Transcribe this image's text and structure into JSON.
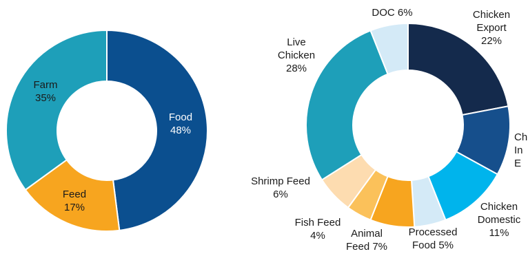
{
  "chart_data": [
    {
      "type": "pie",
      "slices": [
        {
          "lines": [
            "Food",
            "48%"
          ],
          "value": 48,
          "color": "#0b4f8f",
          "text_color": "#ffffff"
        },
        {
          "lines": [
            "Feed",
            "17%"
          ],
          "value": 17,
          "color": "#f7a51f",
          "text_color": "#1a1a1a"
        },
        {
          "lines": [
            "Farm",
            "35%"
          ],
          "value": 35,
          "color": "#1e9fb9",
          "text_color": "#1a1a1a"
        }
      ]
    },
    {
      "type": "pie",
      "slices": [
        {
          "lines": [
            "Chicken",
            "Export",
            "22%"
          ],
          "value": 22,
          "color": "#142a4c",
          "text_color": "#1a1a1a"
        },
        {
          "lines": [
            "Ch",
            "In",
            "E"
          ],
          "value": 11,
          "color": "#164f8c",
          "text_color": "#1a1a1a"
        },
        {
          "lines": [
            "Chicken",
            "Domestic",
            "11%"
          ],
          "value": 11,
          "color": "#00b4ec",
          "text_color": "#1a1a1a"
        },
        {
          "lines": [
            "Processed",
            "Food 5%"
          ],
          "value": 5,
          "color": "#d4eaf7",
          "text_color": "#1a1a1a"
        },
        {
          "lines": [
            "Animal",
            "Feed 7%"
          ],
          "value": 7,
          "color": "#f7a51f",
          "text_color": "#1a1a1a"
        },
        {
          "lines": [
            "Fish Feed",
            "4%"
          ],
          "value": 4,
          "color": "#fbc15a",
          "text_color": "#1a1a1a"
        },
        {
          "lines": [
            "Shrimp Feed",
            "6%"
          ],
          "value": 6,
          "color": "#fddcb0",
          "text_color": "#1a1a1a"
        },
        {
          "lines": [
            "Live",
            "Chicken",
            "28%"
          ],
          "value": 28,
          "color": "#1e9fb9",
          "text_color": "#1a1a1a"
        },
        {
          "lines": [
            "DOC 6%"
          ],
          "value": 6,
          "color": "#d4eaf7",
          "text_color": "#1a1a1a"
        }
      ]
    }
  ]
}
